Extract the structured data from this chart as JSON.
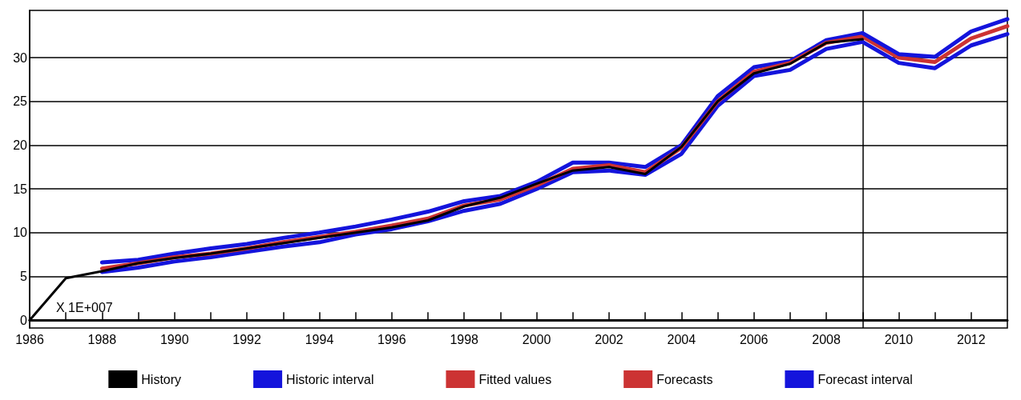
{
  "chart_data": {
    "type": "line",
    "xlim": [
      1986,
      2013
    ],
    "xticks": [
      1986,
      {
        "value": 1987,
        "label": null
      },
      1988,
      {
        "value": 1989,
        "label": null
      },
      1990,
      {
        "value": 1991,
        "label": null
      },
      1992,
      {
        "value": 1993,
        "label": null
      },
      1994,
      {
        "value": 1995,
        "label": null
      },
      1996,
      {
        "value": 1997,
        "label": null
      },
      1998,
      {
        "value": 1999,
        "label": null
      },
      2000,
      {
        "value": 2001,
        "label": null
      },
      2002,
      {
        "value": 2003,
        "label": null
      },
      2004,
      {
        "value": 2005,
        "label": null
      },
      2006,
      {
        "value": 2007,
        "label": null
      },
      2008,
      {
        "value": 2009,
        "label": null
      },
      2010,
      {
        "value": 2011,
        "label": null
      },
      2012
    ],
    "ylim": [
      -0.9,
      35.4
    ],
    "yticks": [
      0,
      5,
      10,
      15,
      20,
      25,
      30
    ],
    "grid": "y",
    "legend": "bottom",
    "marker": "none",
    "line_style": "solid",
    "annotations": [
      "X 1E+007"
    ],
    "ref_lines": [
      {
        "axis": "x",
        "value": 2009,
        "color": "#000000"
      }
    ],
    "series": [
      {
        "name": "Historic interval",
        "color": "#1414dc",
        "x": [
          1988,
          1989,
          1990,
          1991,
          1992,
          1993,
          1994,
          1995,
          1996,
          1997,
          1998,
          1999,
          2000,
          2001,
          2002,
          2003,
          2004,
          2005,
          2006,
          2007,
          2008,
          2009
        ],
        "values": [
          6.6,
          6.9,
          7.6,
          8.2,
          8.7,
          9.4,
          10.0,
          10.7,
          11.5,
          12.4,
          13.6,
          14.2,
          15.8,
          18.0,
          18.0,
          17.5,
          20.0,
          25.6,
          28.9,
          29.6,
          32.0,
          32.8
        ]
      },
      {
        "color": "#1414dc",
        "x": [
          1988,
          1989,
          1990,
          1991,
          1992,
          1993,
          1994,
          1995,
          1996,
          1997,
          1998,
          1999,
          2000,
          2001,
          2002,
          2003,
          2004,
          2005,
          2006,
          2007,
          2008,
          2009
        ],
        "values": [
          5.5,
          6.0,
          6.7,
          7.2,
          7.8,
          8.4,
          8.9,
          9.8,
          10.4,
          11.3,
          12.5,
          13.3,
          15.0,
          16.9,
          17.1,
          16.6,
          19.0,
          24.5,
          27.9,
          28.6,
          31.0,
          31.8
        ]
      },
      {
        "name": "History",
        "color": "#000000",
        "x": [
          1986,
          1987,
          1988,
          1989,
          1990,
          1991,
          1992,
          1993,
          1994,
          1995,
          1996,
          1997,
          1998,
          1999,
          2000,
          2001,
          2002,
          2003,
          2004,
          2005,
          2006,
          2007,
          2008,
          2009
        ],
        "values": [
          0,
          4.8,
          5.6,
          6.5,
          7.1,
          7.6,
          8.2,
          8.8,
          9.4,
          10.0,
          10.6,
          11.4,
          13.0,
          14.0,
          15.6,
          17.1,
          17.5,
          16.7,
          19.8,
          25.0,
          28.2,
          29.3,
          31.7,
          32.1
        ]
      },
      {
        "name": "Fitted values",
        "color": "#cc3333",
        "x": [
          1988,
          1989,
          1990,
          1991,
          1992,
          1993,
          1994,
          1995,
          1996,
          1997,
          1998,
          1999,
          2000,
          2001,
          2002,
          2003,
          2004,
          2005,
          2006,
          2007,
          2008,
          2009
        ],
        "values": [
          5.9,
          6.5,
          7.2,
          7.6,
          8.2,
          8.9,
          9.5,
          10.1,
          10.8,
          11.6,
          13.1,
          13.8,
          15.4,
          17.3,
          17.7,
          16.9,
          19.7,
          25.0,
          28.4,
          29.4,
          31.7,
          32.4
        ]
      },
      {
        "name": "Forecasts",
        "color": "#cc3333",
        "x": [
          2009,
          2010,
          2011,
          2012,
          2013
        ],
        "values": [
          32.4,
          30.0,
          29.5,
          32.2,
          33.6
        ]
      },
      {
        "name": "Forecast interval",
        "color": "#1414dc",
        "x": [
          2009,
          2010,
          2011,
          2012,
          2013
        ],
        "values": [
          32.8,
          30.4,
          30.1,
          33.0,
          34.4
        ]
      },
      {
        "color": "#1414dc",
        "x": [
          2009,
          2010,
          2011,
          2012,
          2013
        ],
        "values": [
          31.8,
          29.4,
          28.8,
          31.4,
          32.7
        ]
      }
    ]
  }
}
